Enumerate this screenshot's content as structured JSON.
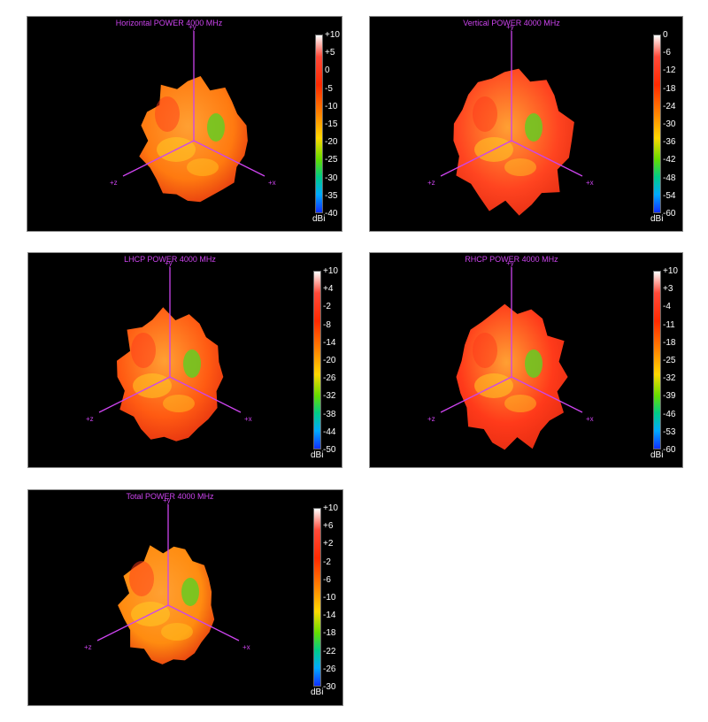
{
  "chart_data": [
    {
      "type": "surface-3d",
      "title": "Horizontal POWER 4000  MHz",
      "colorbar": {
        "unit": "dBi",
        "ticks": [
          "+10",
          "+5",
          "0",
          "-5",
          "-10",
          "-15",
          "-20",
          "-25",
          "-30",
          "-35",
          "-40"
        ],
        "range": [
          -40,
          10
        ]
      },
      "axes": [
        "+y",
        "+z",
        "+x"
      ]
    },
    {
      "type": "surface-3d",
      "title": "Vertical POWER 4000  MHz",
      "colorbar": {
        "unit": "dBi",
        "ticks": [
          "0",
          "-6",
          "-12",
          "-18",
          "-24",
          "-30",
          "-36",
          "-42",
          "-48",
          "-54",
          "-60"
        ],
        "range": [
          -60,
          0
        ]
      },
      "axes": [
        "+y",
        "+z",
        "+x"
      ]
    },
    {
      "type": "surface-3d",
      "title": "LHCP POWER 4000  MHz",
      "colorbar": {
        "unit": "dBi",
        "ticks": [
          "+10",
          "+4",
          "-2",
          "-8",
          "-14",
          "-20",
          "-26",
          "-32",
          "-38",
          "-44",
          "-50"
        ],
        "range": [
          -50,
          10
        ]
      },
      "axes": [
        "+y",
        "+z",
        "+x"
      ]
    },
    {
      "type": "surface-3d",
      "title": "RHCP POWER 4000  MHz",
      "colorbar": {
        "unit": "dBi",
        "ticks": [
          "+10",
          "+3",
          "-4",
          "-11",
          "-18",
          "-25",
          "-32",
          "-39",
          "-46",
          "-53",
          "-60"
        ],
        "range": [
          -60,
          10
        ]
      },
      "axes": [
        "+y",
        "+z",
        "+x"
      ]
    },
    {
      "type": "surface-3d",
      "title": "Total POWER 4000  MHz",
      "colorbar": {
        "unit": "dBi",
        "ticks": [
          "+10",
          "+6",
          "+2",
          "-2",
          "-6",
          "-10",
          "-14",
          "-18",
          "-22",
          "-26",
          "-30"
        ],
        "range": [
          -30,
          10
        ]
      },
      "axes": [
        "+y",
        "+z",
        "+x"
      ]
    }
  ],
  "colors": {
    "panel_bg": "#000000",
    "axis": "#cc44ee",
    "pattern_horizontal": "#ff7a10",
    "pattern_vertical": "#ff4420",
    "pattern_lhcp": "#ff5a12",
    "pattern_rhcp": "#ff3a1a",
    "pattern_total": "#ff8c10",
    "highlight_green": "#66cc22",
    "highlight_yellow": "#ffcc22"
  }
}
